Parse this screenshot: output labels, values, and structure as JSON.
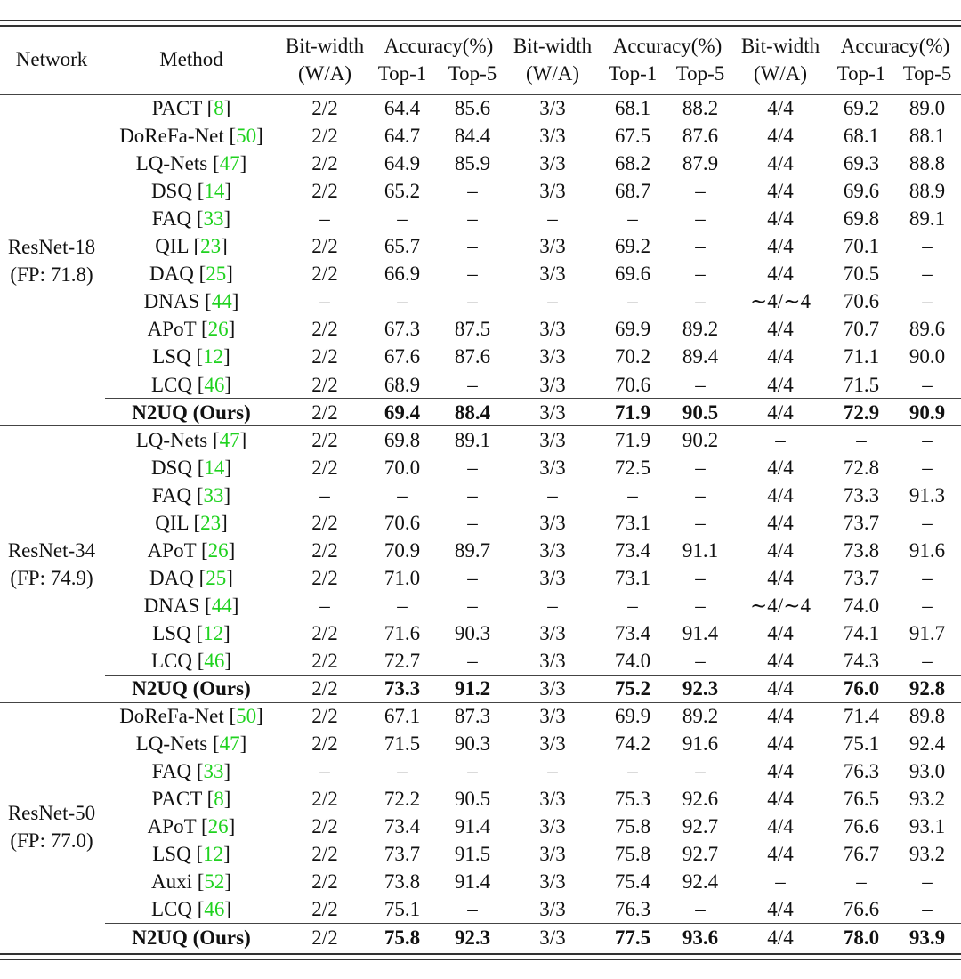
{
  "header": {
    "network": "Network",
    "method": "Method",
    "bitwidth": "Bit-width",
    "wa": "(W/A)",
    "accuracy": "Accuracy(%)",
    "top1": "Top-1",
    "top5": "Top-5"
  },
  "groups": [
    {
      "name": "ResNet-18",
      "fp": "(FP: 71.8)",
      "rows": [
        {
          "method": "PACT",
          "ref": "8",
          "bold": false,
          "v": [
            "2/2",
            "64.4",
            "85.6",
            "3/3",
            "68.1",
            "88.2",
            "4/4",
            "69.2",
            "89.0"
          ]
        },
        {
          "method": "DoReFa-Net",
          "ref": "50",
          "bold": false,
          "v": [
            "2/2",
            "64.7",
            "84.4",
            "3/3",
            "67.5",
            "87.6",
            "4/4",
            "68.1",
            "88.1"
          ]
        },
        {
          "method": "LQ-Nets",
          "ref": "47",
          "bold": false,
          "v": [
            "2/2",
            "64.9",
            "85.9",
            "3/3",
            "68.2",
            "87.9",
            "4/4",
            "69.3",
            "88.8"
          ]
        },
        {
          "method": "DSQ",
          "ref": "14",
          "bold": false,
          "v": [
            "2/2",
            "65.2",
            "–",
            "3/3",
            "68.7",
            "–",
            "4/4",
            "69.6",
            "88.9"
          ]
        },
        {
          "method": "FAQ",
          "ref": "33",
          "bold": false,
          "v": [
            "–",
            "–",
            "–",
            "–",
            "–",
            "–",
            "4/4",
            "69.8",
            "89.1"
          ]
        },
        {
          "method": "QIL",
          "ref": "23",
          "bold": false,
          "v": [
            "2/2",
            "65.7",
            "–",
            "3/3",
            "69.2",
            "–",
            "4/4",
            "70.1",
            "–"
          ]
        },
        {
          "method": "DAQ",
          "ref": "25",
          "bold": false,
          "v": [
            "2/2",
            "66.9",
            "–",
            "3/3",
            "69.6",
            "–",
            "4/4",
            "70.5",
            "–"
          ]
        },
        {
          "method": "DNAS",
          "ref": "44",
          "bold": false,
          "v": [
            "–",
            "–",
            "–",
            "–",
            "–",
            "–",
            "∼4/∼4",
            "70.6",
            "–"
          ]
        },
        {
          "method": "APoT",
          "ref": "26",
          "bold": false,
          "v": [
            "2/2",
            "67.3",
            "87.5",
            "3/3",
            "69.9",
            "89.2",
            "4/4",
            "70.7",
            "89.6"
          ]
        },
        {
          "method": "LSQ",
          "ref": "12",
          "bold": false,
          "v": [
            "2/2",
            "67.6",
            "87.6",
            "3/3",
            "70.2",
            "89.4",
            "4/4",
            "71.1",
            "90.0"
          ]
        },
        {
          "method": "LCQ",
          "ref": "46",
          "bold": false,
          "v": [
            "2/2",
            "68.9",
            "–",
            "3/3",
            "70.6",
            "–",
            "4/4",
            "71.5",
            "–"
          ]
        },
        {
          "method": "N2UQ (Ours)",
          "ref": "",
          "bold": true,
          "v": [
            "2/2",
            "69.4",
            "88.4",
            "3/3",
            "71.9",
            "90.5",
            "4/4",
            "72.9",
            "90.9"
          ]
        }
      ]
    },
    {
      "name": "ResNet-34",
      "fp": "(FP: 74.9)",
      "rows": [
        {
          "method": "LQ-Nets",
          "ref": "47",
          "bold": false,
          "v": [
            "2/2",
            "69.8",
            "89.1",
            "3/3",
            "71.9",
            "90.2",
            "–",
            "–",
            "–"
          ]
        },
        {
          "method": "DSQ",
          "ref": "14",
          "bold": false,
          "v": [
            "2/2",
            "70.0",
            "–",
            "3/3",
            "72.5",
            "–",
            "4/4",
            "72.8",
            "–"
          ]
        },
        {
          "method": "FAQ",
          "ref": "33",
          "bold": false,
          "v": [
            "–",
            "–",
            "–",
            "–",
            "–",
            "–",
            "4/4",
            "73.3",
            "91.3"
          ]
        },
        {
          "method": "QIL",
          "ref": "23",
          "bold": false,
          "v": [
            "2/2",
            "70.6",
            "–",
            "3/3",
            "73.1",
            "–",
            "4/4",
            "73.7",
            "–"
          ]
        },
        {
          "method": "APoT",
          "ref": "26",
          "bold": false,
          "v": [
            "2/2",
            "70.9",
            "89.7",
            "3/3",
            "73.4",
            "91.1",
            "4/4",
            "73.8",
            "91.6"
          ]
        },
        {
          "method": "DAQ",
          "ref": "25",
          "bold": false,
          "v": [
            "2/2",
            "71.0",
            "–",
            "3/3",
            "73.1",
            "–",
            "4/4",
            "73.7",
            "–"
          ]
        },
        {
          "method": "DNAS",
          "ref": "44",
          "bold": false,
          "v": [
            "–",
            "–",
            "–",
            "–",
            "–",
            "–",
            "∼4/∼4",
            "74.0",
            "–"
          ]
        },
        {
          "method": "LSQ",
          "ref": "12",
          "bold": false,
          "v": [
            "2/2",
            "71.6",
            "90.3",
            "3/3",
            "73.4",
            "91.4",
            "4/4",
            "74.1",
            "91.7"
          ]
        },
        {
          "method": "LCQ",
          "ref": "46",
          "bold": false,
          "v": [
            "2/2",
            "72.7",
            "–",
            "3/3",
            "74.0",
            "–",
            "4/4",
            "74.3",
            "–"
          ]
        },
        {
          "method": "N2UQ (Ours)",
          "ref": "",
          "bold": true,
          "v": [
            "2/2",
            "73.3",
            "91.2",
            "3/3",
            "75.2",
            "92.3",
            "4/4",
            "76.0",
            "92.8"
          ]
        }
      ]
    },
    {
      "name": "ResNet-50",
      "fp": "(FP: 77.0)",
      "rows": [
        {
          "method": "DoReFa-Net",
          "ref": "50",
          "bold": false,
          "v": [
            "2/2",
            "67.1",
            "87.3",
            "3/3",
            "69.9",
            "89.2",
            "4/4",
            "71.4",
            "89.8"
          ]
        },
        {
          "method": "LQ-Nets",
          "ref": "47",
          "bold": false,
          "v": [
            "2/2",
            "71.5",
            "90.3",
            "3/3",
            "74.2",
            "91.6",
            "4/4",
            "75.1",
            "92.4"
          ]
        },
        {
          "method": "FAQ",
          "ref": "33",
          "bold": false,
          "v": [
            "–",
            "–",
            "–",
            "–",
            "–",
            "–",
            "4/4",
            "76.3",
            "93.0"
          ]
        },
        {
          "method": "PACT",
          "ref": "8",
          "bold": false,
          "v": [
            "2/2",
            "72.2",
            "90.5",
            "3/3",
            "75.3",
            "92.6",
            "4/4",
            "76.5",
            "93.2"
          ]
        },
        {
          "method": "APoT",
          "ref": "26",
          "bold": false,
          "v": [
            "2/2",
            "73.4",
            "91.4",
            "3/3",
            "75.8",
            "92.7",
            "4/4",
            "76.6",
            "93.1"
          ]
        },
        {
          "method": "LSQ",
          "ref": "12",
          "bold": false,
          "v": [
            "2/2",
            "73.7",
            "91.5",
            "3/3",
            "75.8",
            "92.7",
            "4/4",
            "76.7",
            "93.2"
          ]
        },
        {
          "method": "Auxi",
          "ref": "52",
          "bold": false,
          "v": [
            "2/2",
            "73.8",
            "91.4",
            "3/3",
            "75.4",
            "92.4",
            "–",
            "–",
            "–"
          ]
        },
        {
          "method": "LCQ",
          "ref": "46",
          "bold": false,
          "v": [
            "2/2",
            "75.1",
            "–",
            "3/3",
            "76.3",
            "–",
            "4/4",
            "76.6",
            "–"
          ]
        },
        {
          "method": "N2UQ (Ours)",
          "ref": "",
          "bold": true,
          "v": [
            "2/2",
            "75.8",
            "92.3",
            "3/3",
            "77.5",
            "93.6",
            "4/4",
            "78.0",
            "93.9"
          ]
        }
      ]
    }
  ]
}
